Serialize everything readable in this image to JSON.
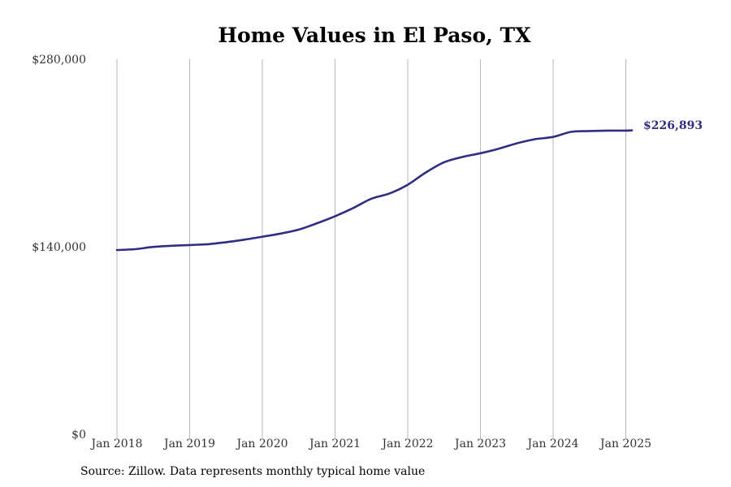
{
  "source_note": "Source: Zillow. Data represents monthly typical home value",
  "chart_data": {
    "type": "line",
    "title": "Home Values in El Paso, TX",
    "xlabel": "",
    "ylabel": "",
    "ylim": [
      0,
      280000
    ],
    "xlim": [
      "2018-01",
      "2025-02"
    ],
    "yticks": [
      0,
      140000,
      280000
    ],
    "ytick_labels": [
      "$0",
      "$140,000",
      "$280,000"
    ],
    "xticks": [
      "2018-01",
      "2019-01",
      "2020-01",
      "2021-01",
      "2022-01",
      "2023-01",
      "2024-01",
      "2025-01"
    ],
    "xtick_labels": [
      "Jan 2018",
      "Jan 2019",
      "Jan 2020",
      "Jan 2021",
      "Jan 2022",
      "Jan 2023",
      "Jan 2024",
      "Jan 2025"
    ],
    "grid": "vertical",
    "line_color": "#2e2e82",
    "end_label": "$226,893",
    "series": [
      {
        "x": [
          "2018-01",
          "2018-04",
          "2018-07",
          "2018-10",
          "2019-01",
          "2019-04",
          "2019-07",
          "2019-10",
          "2020-01",
          "2020-04",
          "2020-07",
          "2020-10",
          "2021-01",
          "2021-04",
          "2021-07",
          "2021-10",
          "2022-01",
          "2022-04",
          "2022-07",
          "2022-10",
          "2023-01",
          "2023-04",
          "2023-07",
          "2023-10",
          "2024-01",
          "2024-04",
          "2024-07",
          "2024-10",
          "2025-01",
          "2025-02"
        ],
        "values": [
          137500,
          138200,
          139900,
          140700,
          141300,
          141900,
          143400,
          145300,
          147500,
          149800,
          152800,
          157500,
          162800,
          168900,
          175900,
          179800,
          186300,
          195500,
          203100,
          207000,
          209800,
          213200,
          217200,
          220300,
          222000,
          225800,
          226400,
          226700,
          226700,
          226893
        ]
      }
    ]
  }
}
